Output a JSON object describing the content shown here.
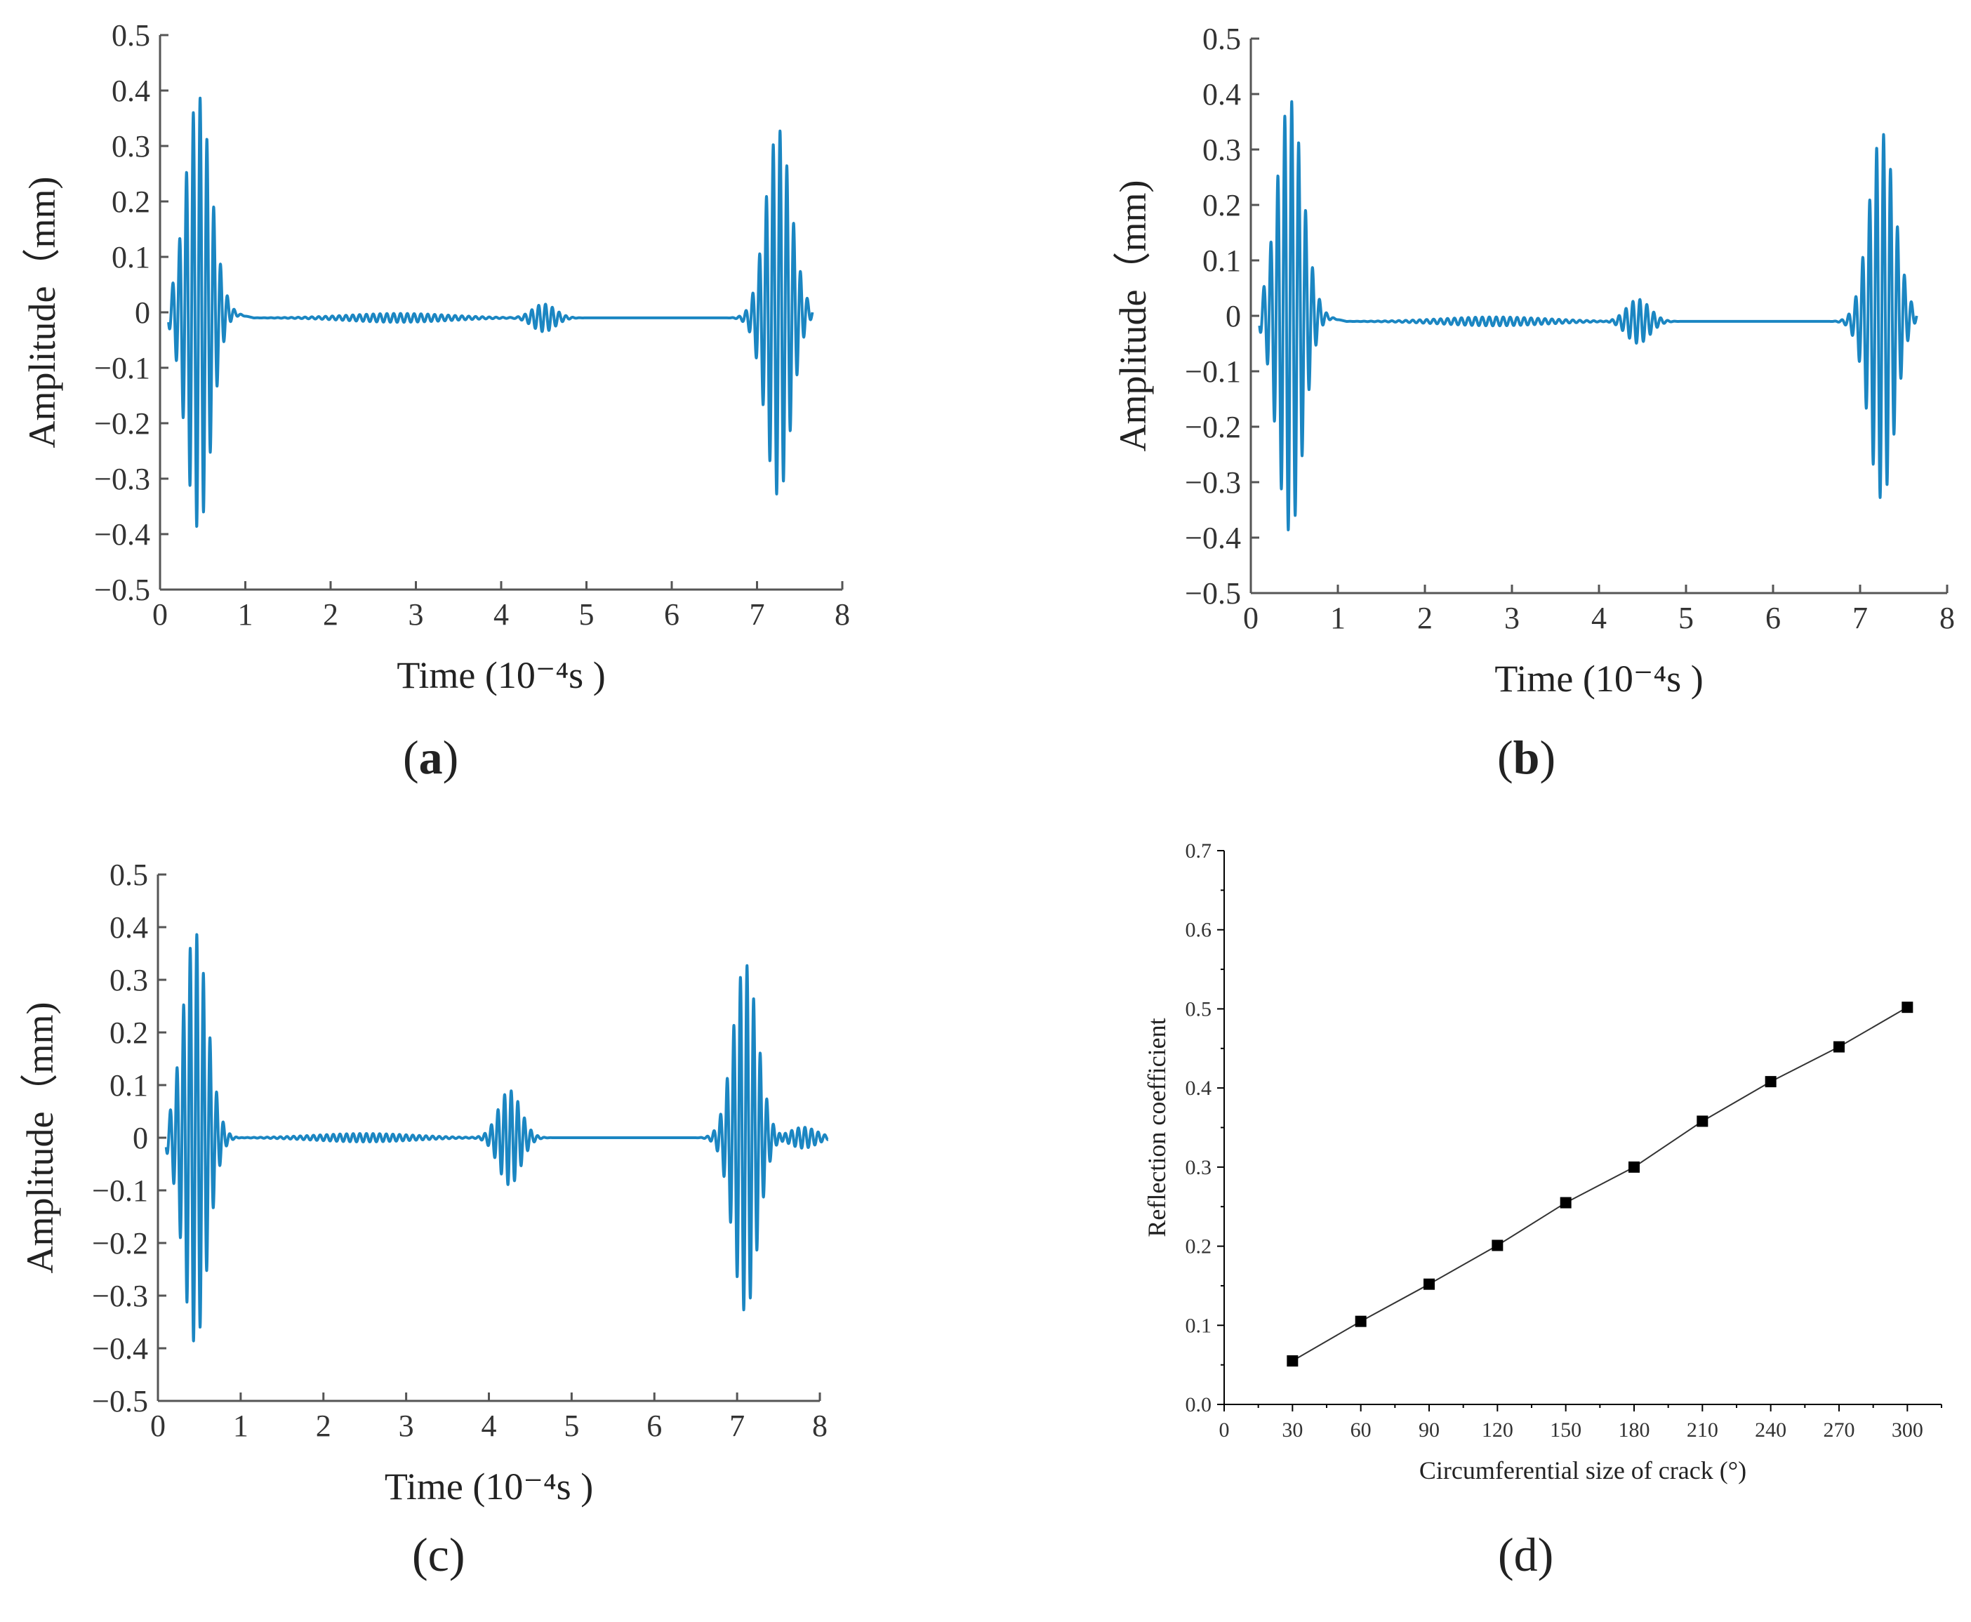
{
  "chart_data": [
    {
      "panel": "a",
      "type": "line",
      "caption_label": "a",
      "xlabel": "Time",
      "xlabel_unit": "(10⁻⁴s )",
      "ylabel": "Amplitude（mm)",
      "xlim": [
        0,
        8
      ],
      "ylim": [
        -0.5,
        0.5
      ],
      "xticks": [
        "0",
        "1",
        "2",
        "3",
        "4",
        "5",
        "6",
        "7",
        "8"
      ],
      "yticks": [
        "0.5",
        "0.4",
        "0.3",
        "0.2",
        "0.1",
        "0",
        "−0.1",
        "−0.2",
        "−0.3",
        "−0.4",
        "−0.5"
      ],
      "color": "#1b86c2",
      "signal": {
        "t_end": 7.65,
        "baseline": -0.01,
        "incident": {
          "center": 0.45,
          "amplitude": 0.39,
          "width": 0.55,
          "freq": 12.5
        },
        "noise": [
          {
            "center": 2.8,
            "amplitude": 0.008,
            "width": 2.2,
            "freq": 12.5
          }
        ],
        "defect": {
          "center": 4.5,
          "amplitude": 0.025,
          "width": 0.5,
          "freq": 12.5
        },
        "end_echo": {
          "center": 7.25,
          "amplitude": 0.33,
          "width": 0.55,
          "freq": 12.5
        }
      }
    },
    {
      "panel": "b",
      "type": "line",
      "caption_label": "b",
      "xlabel": "Time",
      "xlabel_unit": "(10⁻⁴s )",
      "ylabel": "Amplitude（mm)",
      "xlim": [
        0,
        8
      ],
      "ylim": [
        -0.5,
        0.5
      ],
      "xticks": [
        "0",
        "1",
        "2",
        "3",
        "4",
        "5",
        "6",
        "7",
        "8"
      ],
      "yticks": [
        "0.5",
        "0.4",
        "0.3",
        "0.2",
        "0.1",
        "0",
        "−0.1",
        "−0.2",
        "−0.3",
        "−0.4",
        "−0.5"
      ],
      "color": "#1b86c2",
      "signal": {
        "t_end": 7.65,
        "baseline": -0.01,
        "incident": {
          "center": 0.45,
          "amplitude": 0.39,
          "width": 0.55,
          "freq": 12.5
        },
        "noise": [
          {
            "center": 2.8,
            "amplitude": 0.008,
            "width": 2.2,
            "freq": 12.5
          }
        ],
        "defect": {
          "center": 4.45,
          "amplitude": 0.04,
          "width": 0.5,
          "freq": 12.5
        },
        "end_echo": {
          "center": 7.25,
          "amplitude": 0.33,
          "width": 0.55,
          "freq": 12.5
        }
      }
    },
    {
      "panel": "c",
      "type": "line",
      "caption_label": "c",
      "xlabel": "Time",
      "xlabel_unit": "(10⁻⁴s )",
      "ylabel": "Amplitude（mm)",
      "xlim": [
        0,
        8
      ],
      "ylim": [
        -0.5,
        0.5
      ],
      "xticks": [
        "0",
        "1",
        "2",
        "3",
        "4",
        "5",
        "6",
        "7",
        "8"
      ],
      "yticks": [
        "0.5",
        "0.4",
        "0.3",
        "0.2",
        "0.1",
        "0",
        "−0.1",
        "−0.2",
        "−0.3",
        "−0.4",
        "−0.5"
      ],
      "color": "#1b86c2",
      "signal": {
        "t_end": 8.1,
        "baseline": 0.0,
        "incident": {
          "center": 0.45,
          "amplitude": 0.39,
          "width": 0.55,
          "freq": 12.5
        },
        "noise": [
          {
            "center": 2.5,
            "amplitude": 0.008,
            "width": 2.2,
            "freq": 12.5
          }
        ],
        "defect": {
          "center": 4.25,
          "amplitude": 0.09,
          "width": 0.5,
          "freq": 12.5
        },
        "end_echo": {
          "center": 7.1,
          "amplitude": 0.33,
          "width": 0.55,
          "freq": 12.5
        },
        "tail": {
          "center": 7.8,
          "amplitude": 0.02,
          "width": 0.6,
          "freq": 12.5
        }
      }
    },
    {
      "panel": "d",
      "type": "line",
      "caption_label": "d",
      "xlabel": "Circumferential size of crack (°)",
      "ylabel": "Reflection coefficient",
      "xlim": [
        0,
        315
      ],
      "ylim": [
        0,
        0.7
      ],
      "xticks": [
        "0",
        "30",
        "60",
        "90",
        "120",
        "150",
        "180",
        "210",
        "240",
        "270",
        "300"
      ],
      "yticks": [
        "0.7",
        "0.6",
        "0.5",
        "0.4",
        "0.3",
        "0.2",
        "0.1",
        "0.0"
      ],
      "color": "#000000",
      "x": [
        30,
        60,
        90,
        120,
        150,
        180,
        210,
        240,
        270,
        300
      ],
      "y": [
        0.055,
        0.105,
        0.152,
        0.201,
        0.255,
        0.3,
        0.358,
        0.408,
        0.452,
        0.502
      ]
    }
  ]
}
